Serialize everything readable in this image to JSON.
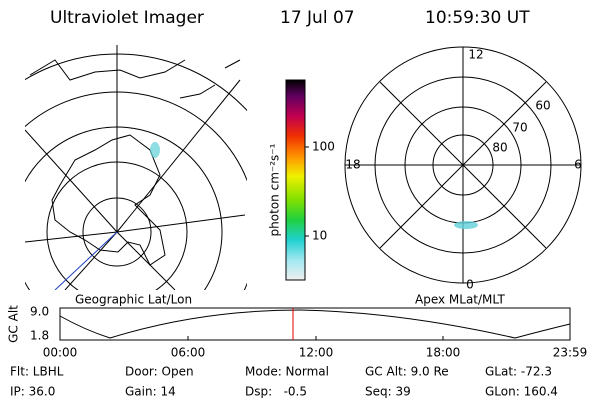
{
  "header": {
    "instrument": "Ultraviolet Imager",
    "date": "17 Jul 07",
    "time": "10:59:30 UT"
  },
  "colorbar": {
    "label": "photon cm⁻²s⁻¹",
    "ticks": [
      "100",
      "10"
    ]
  },
  "right_panel": {
    "mlt_labels": [
      "12",
      "18",
      "6",
      "0"
    ],
    "mlat_labels": [
      "60",
      "70",
      "80"
    ]
  },
  "altitude_plot": {
    "axis_label": "GC Alt",
    "y_labels": [
      "9.0",
      "1.8"
    ],
    "left_caption": "Geographic Lat/Lon",
    "right_caption": "Apex MLat/MLT",
    "time_labels": [
      "00:00",
      "06:00",
      "12:00",
      "18:00",
      "23:59"
    ]
  },
  "footer": {
    "rows": [
      [
        "Flt: LBHL",
        "Door: Open",
        "Mode: Normal",
        "GC Alt: 9.0 Re",
        "GLat: -72.3"
      ],
      [
        "IP: 36.0",
        "Gain: 14",
        "Dsp:   -0.5",
        "Seq: 39",
        "GLon: 160.4"
      ]
    ]
  }
}
